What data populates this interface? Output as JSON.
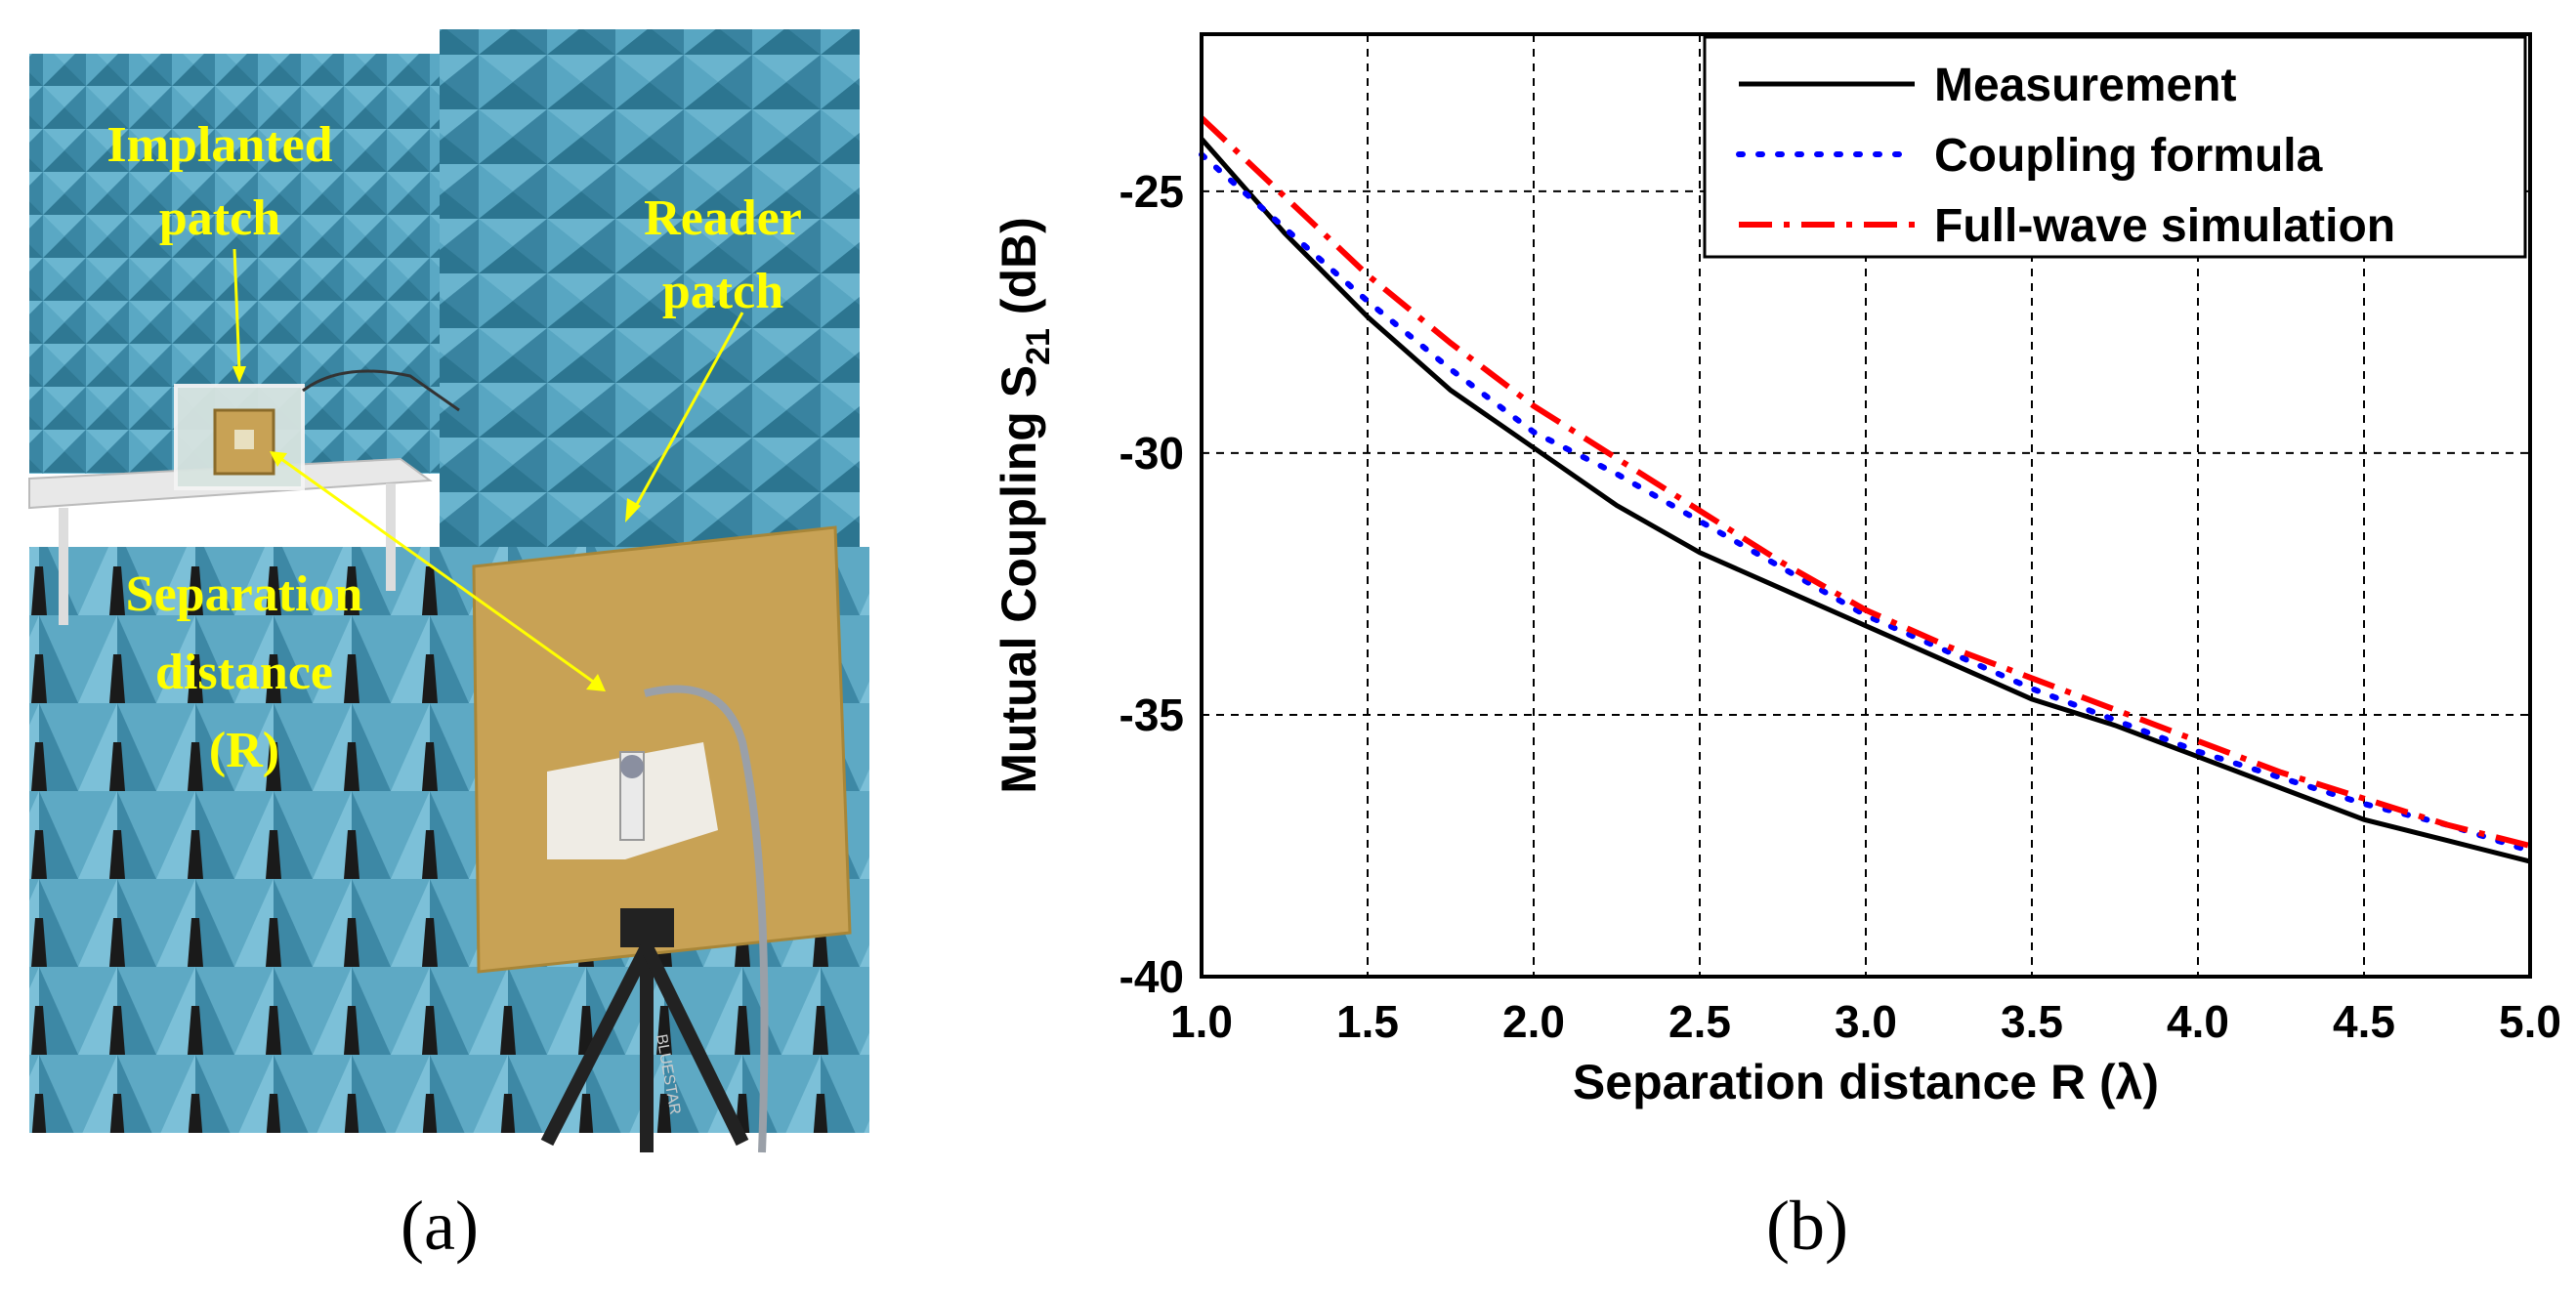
{
  "figure": {
    "caption_a": "(a)",
    "caption_b": "(b)"
  },
  "photo": {
    "labels": {
      "implanted_line1": "Implanted",
      "implanted_line2": "patch",
      "reader_line1": "Reader",
      "reader_line2": "patch",
      "separation_line1": "Separation",
      "separation_line2": "distance",
      "separation_line3": "(R)"
    },
    "overlay_text": "BLUESTAR",
    "colors": {
      "foam": "#4a9bb8",
      "foam_dark": "#2b6f8a",
      "label": "#ffff00",
      "patch": "#c8a255"
    }
  },
  "chart_data": {
    "type": "line",
    "title": "",
    "xlabel": "Separation  distance R (λ)",
    "ylabel_main": "Mutual Coupling S",
    "ylabel_sub": "21",
    "ylabel_unit": " (dB)",
    "xlim": [
      1.0,
      5.0
    ],
    "ylim": [
      -40,
      -22
    ],
    "x_ticks": [
      1.0,
      1.5,
      2.0,
      2.5,
      3.0,
      3.5,
      4.0,
      4.5,
      5.0
    ],
    "x_tick_labels": [
      "1.0",
      "1.5",
      "2.0",
      "2.5",
      "3.0",
      "3.5",
      "4.0",
      "4.5",
      "5.0"
    ],
    "y_ticks": [
      -40,
      -35,
      -30,
      -25
    ],
    "y_tick_labels": [
      "-40",
      "-35",
      "-30",
      "-25"
    ],
    "grid": true,
    "legend_position": "top-right",
    "x": [
      1.0,
      1.25,
      1.5,
      1.75,
      2.0,
      2.25,
      2.5,
      2.75,
      3.0,
      3.25,
      3.5,
      3.75,
      4.0,
      4.25,
      4.5,
      4.75,
      5.0
    ],
    "series": [
      {
        "name": "Measurement",
        "color": "#000000",
        "style": "solid",
        "values": [
          -24.0,
          -25.8,
          -27.4,
          -28.8,
          -29.9,
          -31.0,
          -31.9,
          -32.6,
          -33.3,
          -34.0,
          -34.7,
          -35.2,
          -35.8,
          -36.4,
          -37.0,
          -37.4,
          -37.8
        ]
      },
      {
        "name": "Coupling formula",
        "color": "#0000ff",
        "style": "dotted",
        "values": [
          -24.3,
          -25.7,
          -27.1,
          -28.4,
          -29.6,
          -30.4,
          -31.3,
          -32.2,
          -33.1,
          -33.8,
          -34.5,
          -35.1,
          -35.7,
          -36.2,
          -36.7,
          -37.1,
          -37.6
        ]
      },
      {
        "name": "Full-wave simulation",
        "color": "#ff0000",
        "style": "dashdot",
        "values": [
          -23.6,
          -25.1,
          -26.6,
          -27.9,
          -29.1,
          -30.1,
          -31.1,
          -32.1,
          -33.0,
          -33.7,
          -34.3,
          -34.9,
          -35.5,
          -36.1,
          -36.6,
          -37.1,
          -37.5
        ]
      }
    ]
  }
}
